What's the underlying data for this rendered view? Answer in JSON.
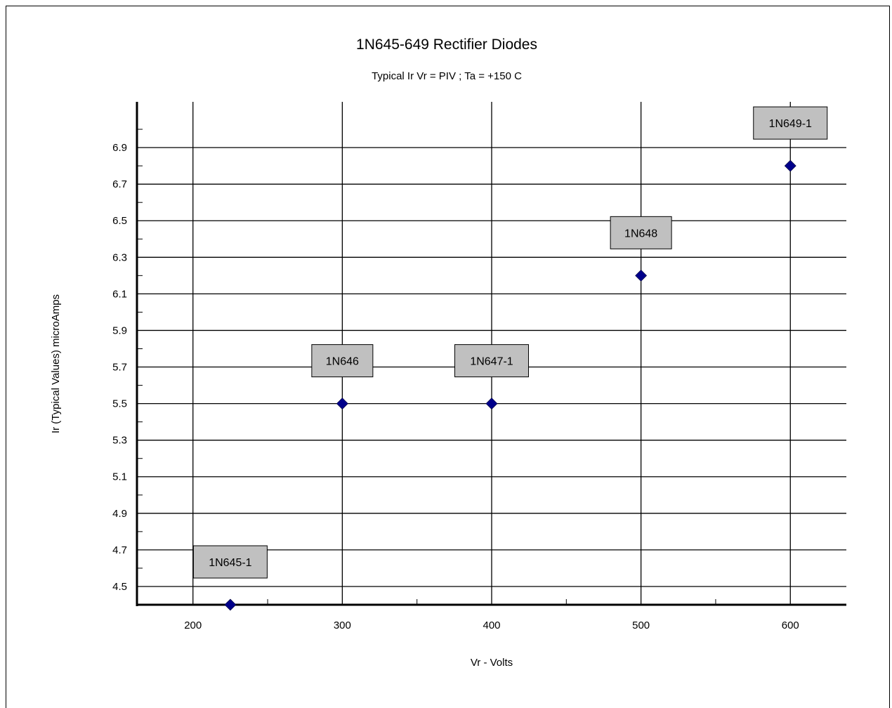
{
  "chart_data": {
    "type": "scatter",
    "title": "1N645-649 Rectifier Diodes",
    "subtitle": "Typical Ir  Vr = PIV ; Ta = +150 C",
    "xlabel": "Vr - Volts",
    "ylabel": "Ir (Typical Values) microAmps",
    "xlim": [
      162.5,
      637.5
    ],
    "ylim": [
      4.4,
      7.15
    ],
    "x_ticks": [
      200,
      300,
      400,
      500,
      600
    ],
    "y_ticks": [
      4.5,
      4.7,
      4.9,
      5.1,
      5.3,
      5.5,
      5.7,
      5.9,
      6.1,
      6.3,
      6.5,
      6.7,
      6.9
    ],
    "grid": true,
    "legend": "none",
    "marker_color": "#00008B",
    "label_box_color": "#C0C0C0",
    "points": [
      {
        "label": "1N645-1",
        "x": 225,
        "y": 4.4
      },
      {
        "label": "1N646",
        "x": 300,
        "y": 5.5
      },
      {
        "label": "1N647-1",
        "x": 400,
        "y": 5.5
      },
      {
        "label": "1N648",
        "x": 500,
        "y": 6.2
      },
      {
        "label": "1N649-1",
        "x": 600,
        "y": 6.8
      }
    ]
  }
}
